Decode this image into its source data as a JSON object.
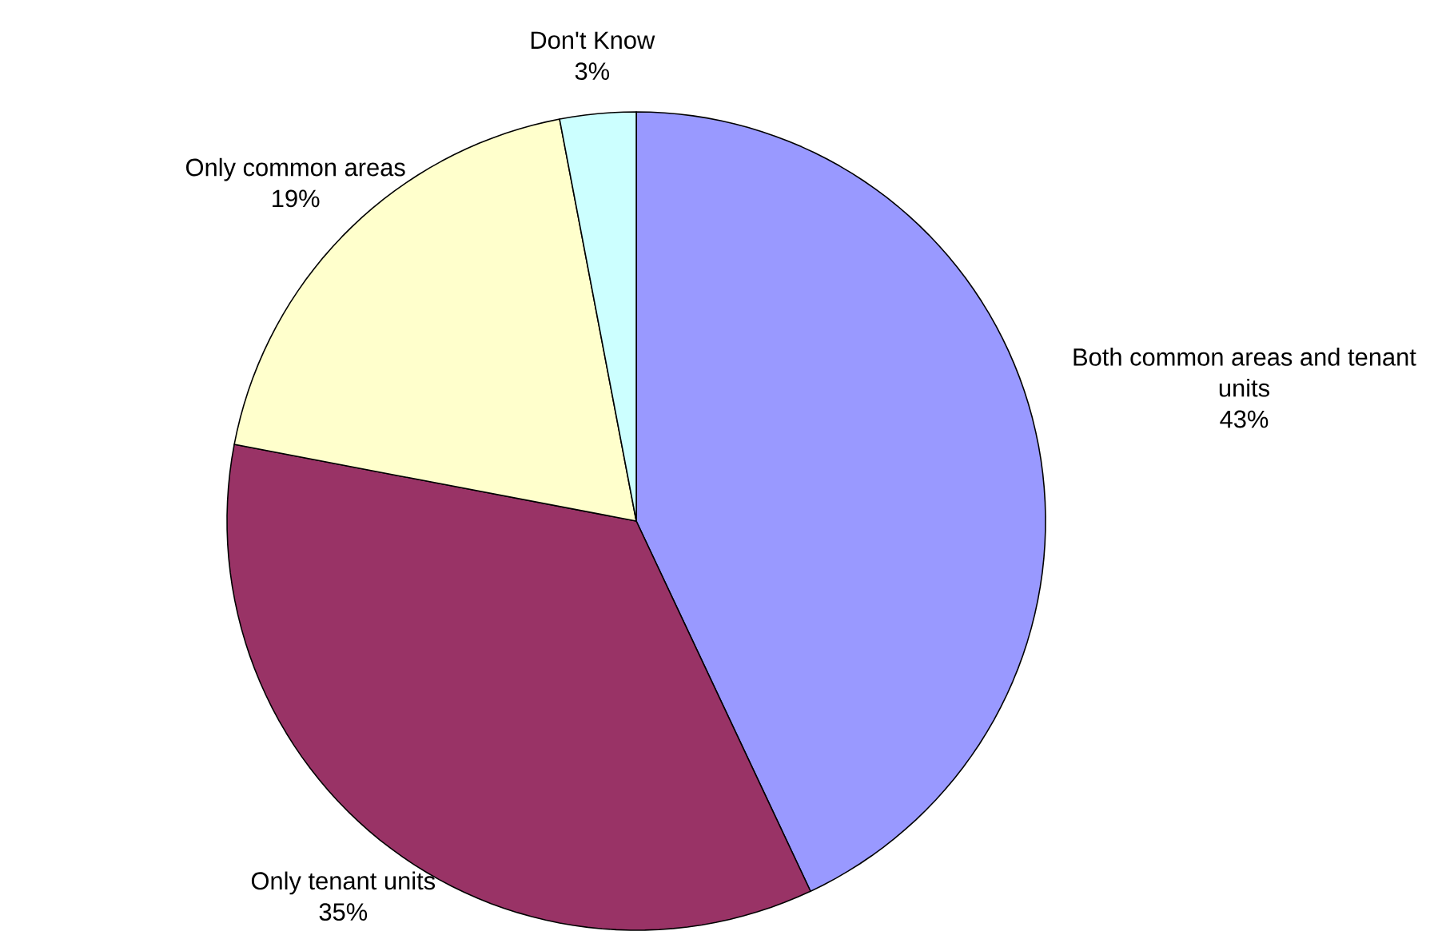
{
  "chart_data": {
    "type": "pie",
    "categories": [
      "Both common areas and tenant units",
      "Only tenant units",
      "Only common areas",
      "Don't Know"
    ],
    "values": [
      43,
      35,
      19,
      3
    ],
    "value_labels": [
      "43%",
      "35%",
      "19%",
      "3%"
    ],
    "colors": [
      "#9999ff",
      "#993366",
      "#ffffcc",
      "#ccffff"
    ]
  }
}
